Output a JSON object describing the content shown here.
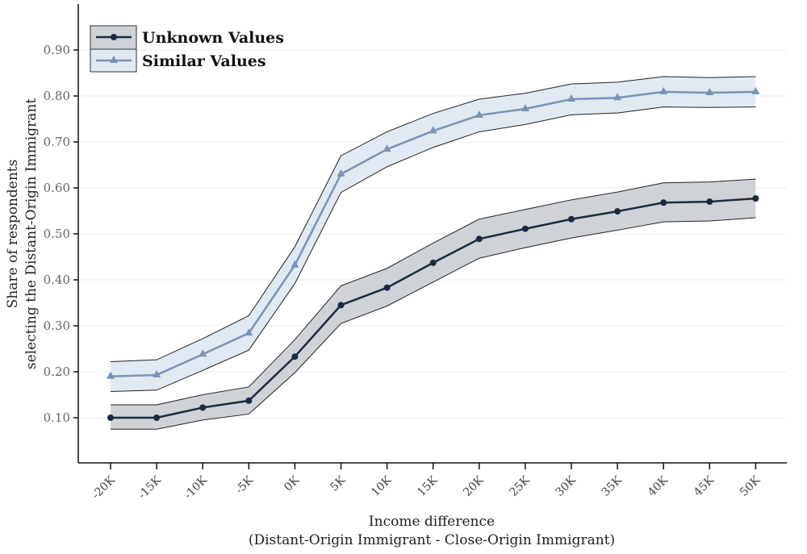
{
  "chart_data": {
    "type": "line",
    "title": "",
    "xlabel": "Income difference",
    "xlabel_sub": "(Distant-Origin Immigrant - Close-Origin Immigrant)",
    "ylabel": "Share of respondents",
    "ylabel_sub": "selecting the Distant-Origin Immigrant",
    "categories": [
      "-20K",
      "-15K",
      "-10K",
      "-5K",
      "0K",
      "5K",
      "10K",
      "15K",
      "20K",
      "25K",
      "30K",
      "35K",
      "40K",
      "45K",
      "50K"
    ],
    "ylim": [
      0.01,
      1.0
    ],
    "yticks": [
      "0.10",
      "0.20",
      "0.30",
      "0.40",
      "0.50",
      "0.60",
      "0.70",
      "0.80",
      "0.90"
    ],
    "ytick_values": [
      0.1,
      0.2,
      0.3,
      0.4,
      0.5,
      0.6,
      0.7,
      0.8,
      0.9
    ],
    "grid": true,
    "legend_position": "top-left",
    "series": [
      {
        "name": "Unknown Values",
        "marker": "circle",
        "color": "#1b2a41",
        "band_color": "#cfd3d8",
        "values": [
          0.1,
          0.1,
          0.122,
          0.137,
          0.233,
          0.345,
          0.383,
          0.437,
          0.489,
          0.511,
          0.532,
          0.549,
          0.568,
          0.57,
          0.577
        ],
        "lower": [
          0.075,
          0.075,
          0.095,
          0.108,
          0.198,
          0.305,
          0.343,
          0.395,
          0.447,
          0.47,
          0.491,
          0.508,
          0.526,
          0.528,
          0.535
        ],
        "upper": [
          0.128,
          0.128,
          0.15,
          0.167,
          0.27,
          0.387,
          0.425,
          0.48,
          0.532,
          0.553,
          0.574,
          0.591,
          0.611,
          0.613,
          0.619
        ]
      },
      {
        "name": "Similar Values",
        "marker": "triangle",
        "color": "#7893b5",
        "band_color": "#e1e9f3",
        "values": [
          0.19,
          0.193,
          0.238,
          0.284,
          0.432,
          0.63,
          0.684,
          0.724,
          0.758,
          0.772,
          0.793,
          0.796,
          0.809,
          0.807,
          0.809
        ],
        "lower": [
          0.157,
          0.16,
          0.203,
          0.247,
          0.392,
          0.59,
          0.646,
          0.688,
          0.722,
          0.738,
          0.759,
          0.763,
          0.776,
          0.775,
          0.776
        ],
        "upper": [
          0.222,
          0.226,
          0.272,
          0.322,
          0.472,
          0.67,
          0.722,
          0.762,
          0.793,
          0.806,
          0.826,
          0.83,
          0.842,
          0.84,
          0.842
        ]
      }
    ]
  }
}
